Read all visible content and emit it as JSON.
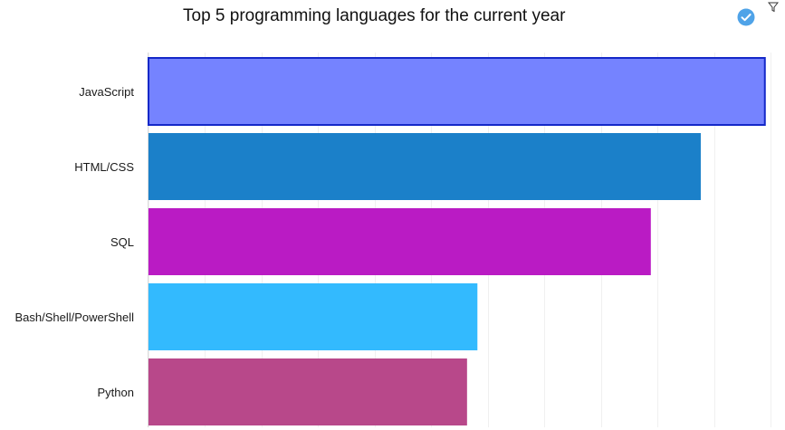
{
  "chart_data": {
    "type": "bar",
    "orientation": "horizontal",
    "title": "Top 5 programming languages for the current year",
    "categories": [
      "JavaScript",
      "HTML/CSS",
      "SQL",
      "Bash/Shell/PowerShell",
      "Python"
    ],
    "values": [
      65.4,
      58.6,
      53.3,
      34.9,
      33.8
    ],
    "colors": [
      "#7583FF",
      "#1B80C9",
      "#BA1BC4",
      "#33BAFE",
      "#B8488A"
    ],
    "highlighted_category": "JavaScript",
    "highlight_border_color": "#1428C8",
    "xlim": [
      0,
      66
    ],
    "grid": true,
    "legend": "none"
  },
  "toolbar": {
    "check_icon": "check-circle-icon",
    "filter_icon": "filter-icon",
    "accent_color": "#4FA3E8"
  }
}
